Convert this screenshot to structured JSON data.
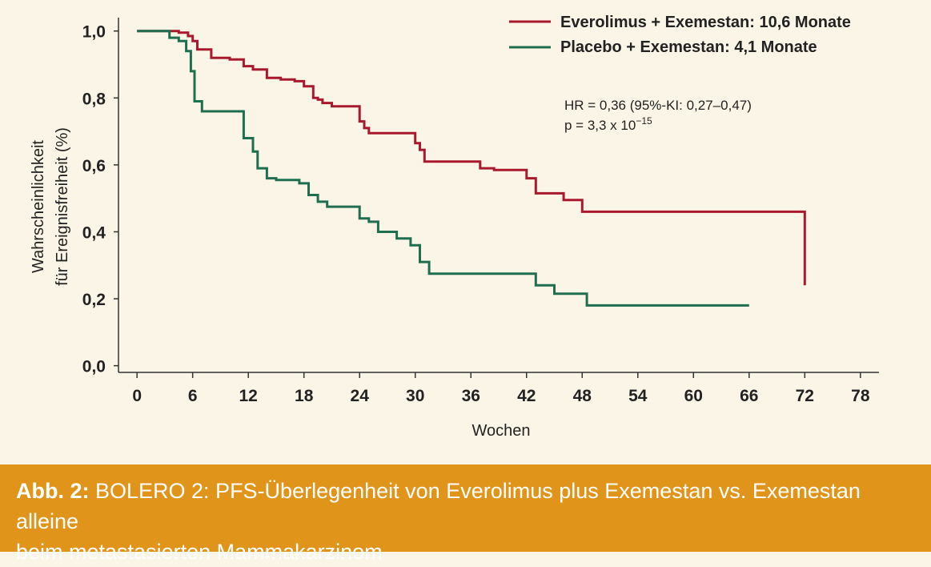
{
  "colors": {
    "background": "#faf5e6",
    "everolimus": "#a8192e",
    "placebo": "#1f6e50",
    "caption_bg": "#e0951a",
    "axis": "#333333"
  },
  "chart_data": {
    "type": "line",
    "step": true,
    "xlabel": "Wochen",
    "ylabel_line1": "Wahrscheinlichkeit",
    "ylabel_line2": "für Ereignisfreiheit (%)",
    "xlim": [
      -2,
      80
    ],
    "ylim": [
      -0.02,
      1.04
    ],
    "xticks": [
      0,
      6,
      12,
      18,
      24,
      30,
      36,
      42,
      48,
      54,
      60,
      66,
      72,
      78
    ],
    "xtick_labels": [
      "0",
      "6",
      "12",
      "18",
      "24",
      "30",
      "36",
      "42",
      "48",
      "54",
      "60",
      "66",
      "72",
      "78"
    ],
    "yticks": [
      0.0,
      0.2,
      0.4,
      0.6,
      0.8,
      1.0
    ],
    "ytick_labels": [
      "0,0",
      "0,2",
      "0,4",
      "0,6",
      "0,8",
      "1,0"
    ],
    "grid": false,
    "legend_position": "top-right",
    "series": [
      {
        "name": "Everolimus + Exemestan: 10,6 Monate",
        "color": "#a8192e",
        "x": [
          0,
          4.5,
          5.5,
          6.0,
          6.5,
          8.0,
          10.0,
          11.5,
          12.5,
          14.0,
          15.5,
          17.0,
          18.0,
          19.0,
          19.5,
          20.0,
          21.0,
          24.0,
          24.5,
          25.0,
          30.0,
          30.5,
          31.0,
          37.0,
          38.5,
          42.0,
          43.0,
          46.0,
          48.0,
          72.0,
          72.0
        ],
        "y": [
          1.0,
          0.995,
          0.985,
          0.97,
          0.945,
          0.92,
          0.915,
          0.895,
          0.885,
          0.86,
          0.855,
          0.85,
          0.835,
          0.8,
          0.795,
          0.785,
          0.775,
          0.73,
          0.71,
          0.695,
          0.665,
          0.645,
          0.61,
          0.59,
          0.585,
          0.56,
          0.515,
          0.495,
          0.46,
          0.46,
          0.24
        ]
      },
      {
        "name": "Placebo + Exemestan: 4,1 Monate",
        "color": "#1f6e50",
        "x": [
          0,
          3.5,
          4.5,
          5.3,
          5.8,
          6.2,
          7.0,
          11.5,
          12.5,
          13.0,
          14.0,
          15.0,
          17.5,
          18.5,
          19.5,
          20.5,
          24.0,
          25.0,
          26.0,
          28.0,
          29.5,
          30.5,
          31.5,
          43.0,
          45.0,
          48.5,
          66.0
        ],
        "y": [
          1.0,
          0.98,
          0.97,
          0.94,
          0.88,
          0.79,
          0.76,
          0.68,
          0.64,
          0.59,
          0.56,
          0.555,
          0.545,
          0.51,
          0.49,
          0.475,
          0.44,
          0.43,
          0.4,
          0.38,
          0.36,
          0.31,
          0.275,
          0.24,
          0.215,
          0.18,
          0.18
        ]
      }
    ],
    "annotation_hr": "HR = 0,36 (95%-KI: 0,27–0,47)",
    "annotation_p_base": "p = 3,3 x 10",
    "annotation_p_exp": "−15"
  },
  "caption": {
    "label": "Abb. 2:",
    "line1": " BOLERO 2: PFS-Überlegenheit von Everolimus plus Exemestan vs. Exemestan alleine",
    "line2": "beim metastasierten Mammakarzinom"
  }
}
